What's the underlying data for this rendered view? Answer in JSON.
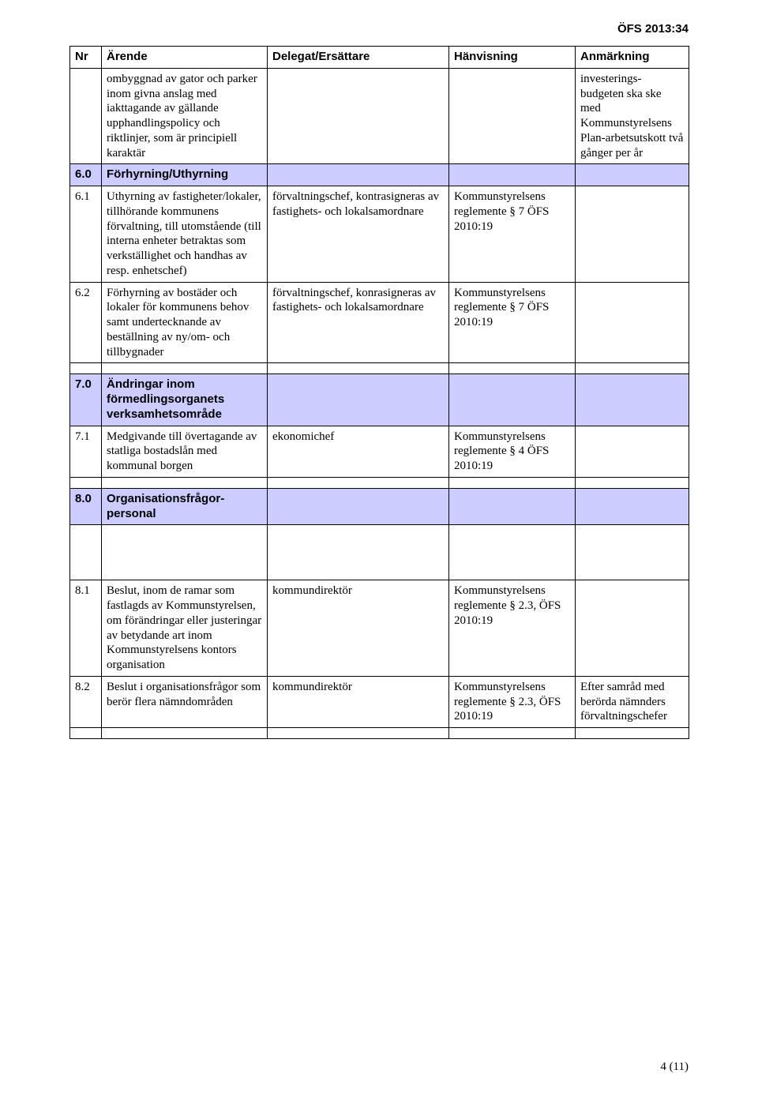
{
  "doc_code": "ÖFS 2013:34",
  "columns": {
    "nr": "Nr",
    "arende": "Ärende",
    "delegat": "Delegat/Ersättare",
    "hanvisning": "Hänvisning",
    "anmarkning": "Anmärkning"
  },
  "colors": {
    "section_bg": "#ccccff",
    "border": "#000000",
    "page_bg": "#ffffff",
    "text": "#000000"
  },
  "rows": {
    "cont": {
      "nr": "",
      "arende": "ombyggnad av gator och parker inom givna anslag med iakttagande av gällande upphandlingspolicy och riktlinjer, som är principiell karaktär",
      "delegat": "",
      "hanvisning": "",
      "anmarkning": "investerings-budgeten ska ske med Kommunstyrelsens Plan-arbetsutskott två gånger per år"
    },
    "s6_0": {
      "nr": "6.0",
      "arende": "Förhyrning/Uthyrning"
    },
    "r6_1": {
      "nr": "6.1",
      "arende": "Uthyrning av fastigheter/lokaler, tillhörande kommunens förvaltning, till utomstående (till interna enheter betraktas som verkställighet och handhas av resp. enhetschef)",
      "delegat": "förvaltningschef, kontrasigneras av fastighets- och lokalsamordnare",
      "hanvisning": "Kommunstyrelsens reglemente § 7 ÖFS 2010:19",
      "anmarkning": ""
    },
    "r6_2": {
      "nr": "6.2",
      "arende": "Förhyrning av bostäder och lokaler för kommunens behov samt undertecknande av beställning av ny/om- och tillbygnader",
      "delegat": "förvaltningschef, konrasigneras av fastighets- och lokalsamordnare",
      "hanvisning": "Kommunstyrelsens reglemente § 7 ÖFS 2010:19",
      "anmarkning": ""
    },
    "s7_0": {
      "nr": "7.0",
      "arende": "Ändringar inom förmedlingsorganets verksamhetsområde"
    },
    "r7_1": {
      "nr": "7.1",
      "arende": "Medgivande till övertagande av statliga bostadslån med kommunal borgen",
      "delegat": "ekonomichef",
      "hanvisning": "Kommunstyrelsens reglemente § 4 ÖFS 2010:19",
      "anmarkning": ""
    },
    "s8_0": {
      "nr": "8.0",
      "arende": "Organisationsfrågor-personal"
    },
    "r8_1": {
      "nr": "8.1",
      "arende": "Beslut, inom de ramar som fastlagds av Kommunstyrelsen, om förändringar eller justeringar av betydande art inom Kommunstyrelsens kontors organisation",
      "delegat": "kommundirektör",
      "hanvisning": "Kommunstyrelsens reglemente § 2.3, ÖFS 2010:19",
      "anmarkning": ""
    },
    "r8_2": {
      "nr": "8.2",
      "arende": "Beslut i organisationsfrågor som berör flera nämndområden",
      "delegat": "kommundirektör",
      "hanvisning": "Kommunstyrelsens reglemente § 2.3, ÖFS 2010:19",
      "anmarkning": "Efter samråd med berörda nämnders förvaltningschefer"
    }
  },
  "page_number": "4 (11)"
}
